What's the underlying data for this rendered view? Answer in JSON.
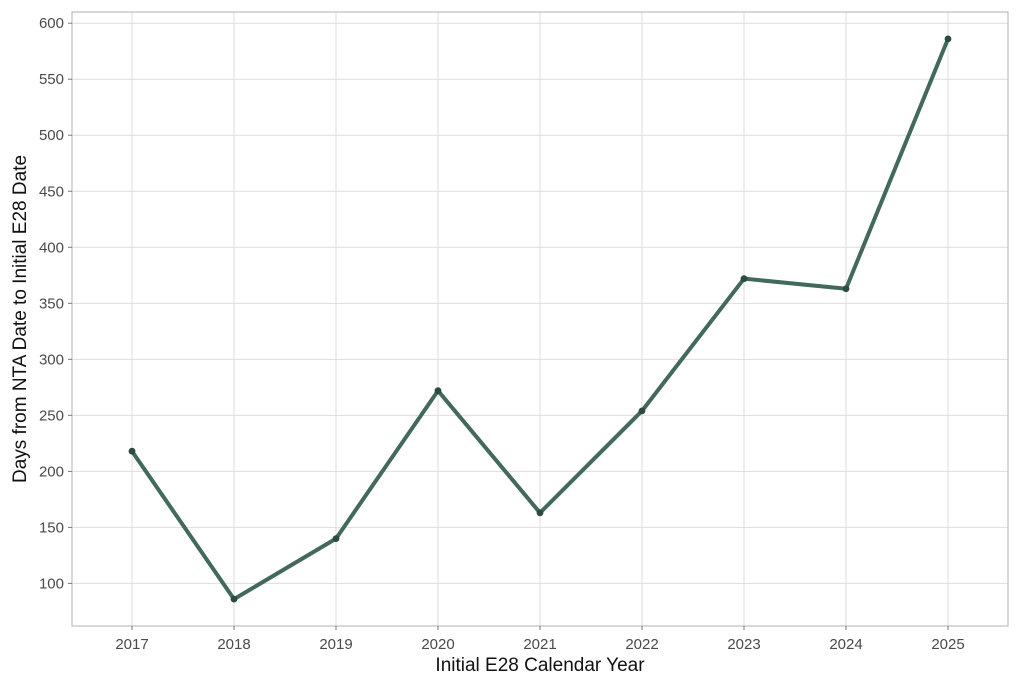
{
  "chart_data": {
    "type": "line",
    "title": "",
    "xlabel": "Initial E28 Calendar Year",
    "ylabel": "Days from NTA Date to Initial E28 Date",
    "x": [
      "2017",
      "2018",
      "2019",
      "2020",
      "2021",
      "2022",
      "2023",
      "2024",
      "2025"
    ],
    "series": [
      {
        "values": [
          218,
          86,
          140,
          272,
          163,
          254,
          372,
          363,
          586
        ],
        "color": "#43695c",
        "point_color": "#2e4b41"
      }
    ],
    "ylim": [
      62,
      610
    ],
    "yticks": [
      100,
      150,
      200,
      250,
      300,
      350,
      400,
      450,
      500,
      550,
      600
    ],
    "grid": true,
    "legend": "none"
  }
}
